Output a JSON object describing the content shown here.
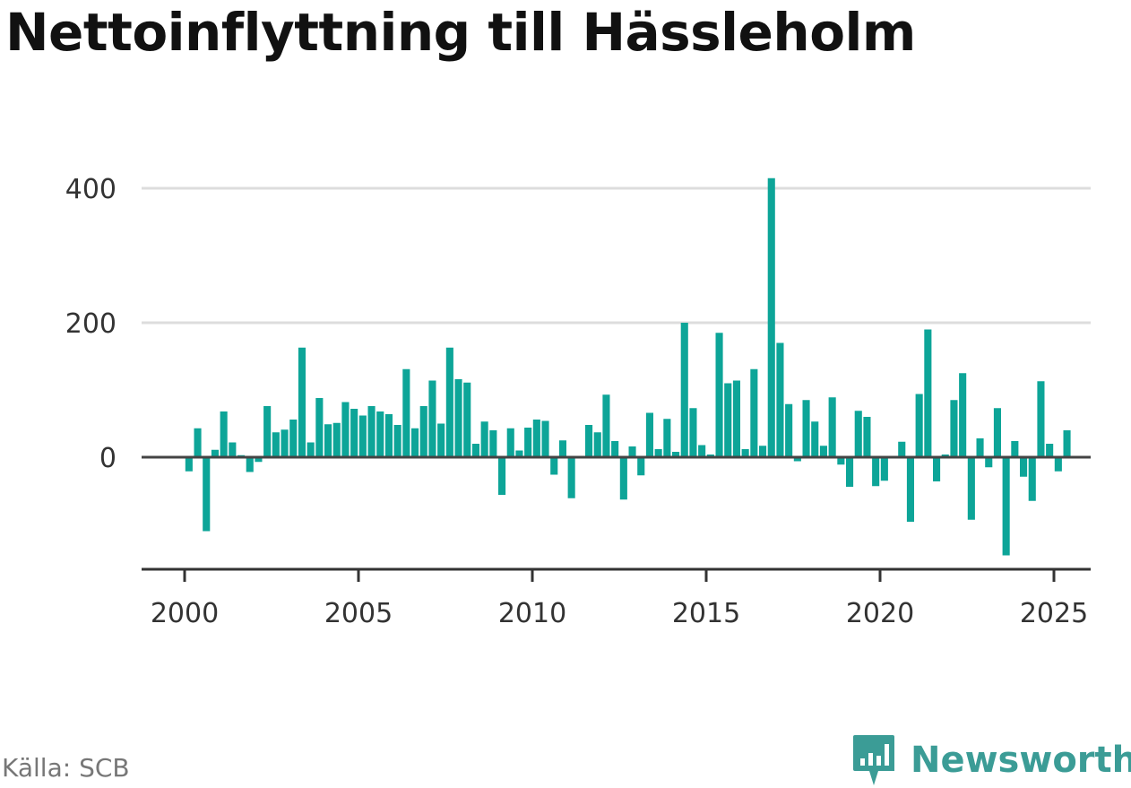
{
  "title": "Nettoinflyttning till Hässleholm",
  "source": "Källa: SCB",
  "brand": {
    "name": "Newsworthy",
    "icon": "newsworthy-logo-icon",
    "color": "#3b9c96"
  },
  "colors": {
    "bar": "#0da598",
    "grid": "#dddddd",
    "zero_line": "#444444",
    "axis": "#333333"
  },
  "chart_data": {
    "type": "bar",
    "title": "Nettoinflyttning till Hässleholm",
    "xlabel": "",
    "ylabel": "",
    "grid": true,
    "ylim": [
      -165,
      420
    ],
    "xlim": [
      1999.5,
      2026.25
    ],
    "yticks": [
      0,
      200,
      400
    ],
    "xticks": [
      2000,
      2005,
      2010,
      2015,
      2020,
      2025
    ],
    "period_years": 0.25,
    "x_start": 2000.125,
    "values": [
      -21,
      43,
      -110,
      11,
      68,
      22,
      3,
      -22,
      -7,
      76,
      37,
      41,
      56,
      163,
      22,
      88,
      49,
      51,
      82,
      72,
      62,
      76,
      68,
      64,
      48,
      131,
      43,
      76,
      114,
      50,
      163,
      116,
      111,
      20,
      53,
      40,
      -56,
      43,
      10,
      44,
      56,
      54,
      -26,
      25,
      -61,
      0,
      48,
      37,
      93,
      24,
      -63,
      16,
      -27,
      66,
      12,
      57,
      8,
      200,
      73,
      18,
      4,
      185,
      110,
      114,
      12,
      131,
      17,
      415,
      170,
      79,
      -6,
      85,
      53,
      17,
      89,
      -11,
      -44,
      69,
      60,
      -43,
      -35,
      2,
      23,
      -96,
      94,
      190,
      -36,
      4,
      85,
      125,
      -93,
      28,
      -15,
      73,
      -146,
      24,
      -29,
      -65,
      113,
      20,
      -21,
      40
    ]
  }
}
